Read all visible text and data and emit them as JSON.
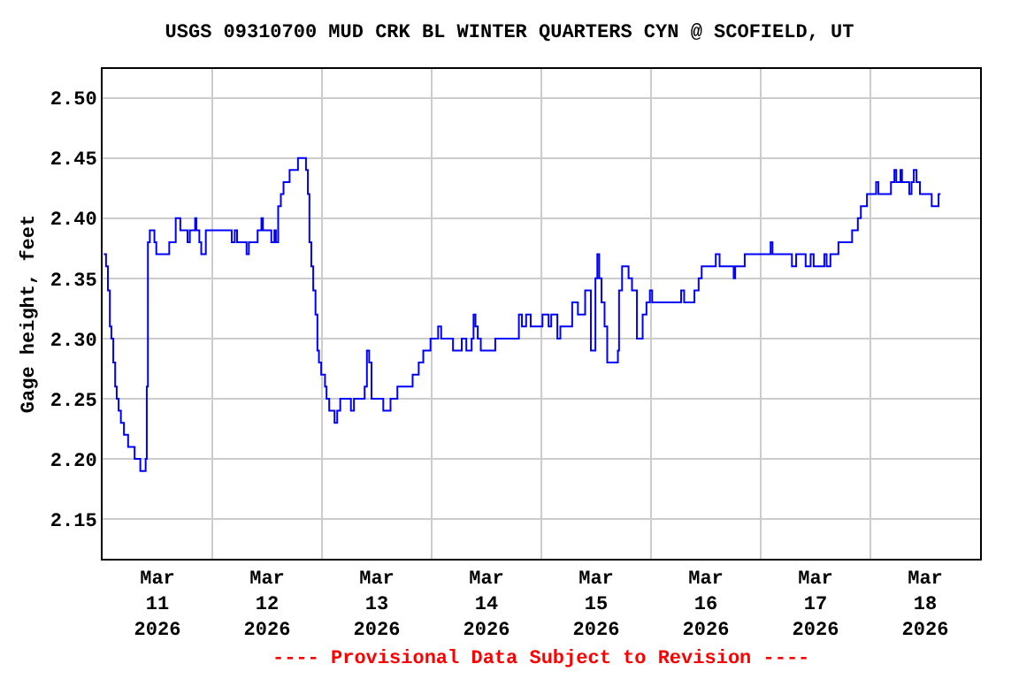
{
  "chart_data": {
    "type": "step",
    "title": "USGS 09310700 MUD CRK BL WINTER QUARTERS CYN @ SCOFIELD, UT",
    "ylabel": "Gage height, feet",
    "annotations": [
      "---- Provisional Data Subject to Revision ----"
    ],
    "x": [
      "2026-03-11T00:15",
      "2026-03-11T00:45",
      "2026-03-11T01:10",
      "2026-03-11T01:35",
      "2026-03-11T01:55",
      "2026-03-11T02:20",
      "2026-03-11T02:45",
      "2026-03-11T03:05",
      "2026-03-11T03:30",
      "2026-03-11T04:00",
      "2026-03-11T04:40",
      "2026-03-11T05:35",
      "2026-03-11T07:00",
      "2026-03-11T08:15",
      "2026-03-11T09:25",
      "2026-03-11T09:40",
      "2026-03-11T09:55",
      "2026-03-11T10:20",
      "2026-03-11T11:20",
      "2026-03-11T11:45",
      "2026-03-11T14:35",
      "2026-03-11T16:00",
      "2026-03-11T17:00",
      "2026-03-11T18:35",
      "2026-03-11T19:05",
      "2026-03-11T20:15",
      "2026-03-11T20:30",
      "2026-03-11T21:10",
      "2026-03-11T21:35",
      "2026-03-11T22:35",
      "2026-03-12T04:15",
      "2026-03-12T04:55",
      "2026-03-12T05:25",
      "2026-03-12T07:30",
      "2026-03-12T08:00",
      "2026-03-12T09:55",
      "2026-03-12T10:45",
      "2026-03-12T11:05",
      "2026-03-12T12:55",
      "2026-03-12T13:35",
      "2026-03-12T13:55",
      "2026-03-12T14:25",
      "2026-03-12T15:00",
      "2026-03-12T15:35",
      "2026-03-12T16:55",
      "2026-03-12T18:45",
      "2026-03-12T20:30",
      "2026-03-12T20:55",
      "2026-03-12T21:15",
      "2026-03-12T21:40",
      "2026-03-12T22:05",
      "2026-03-12T22:35",
      "2026-03-12T23:00",
      "2026-03-12T23:20",
      "2026-03-12T23:50",
      "2026-03-13T00:40",
      "2026-03-13T01:00",
      "2026-03-13T01:35",
      "2026-03-13T02:45",
      "2026-03-13T03:20",
      "2026-03-13T04:00",
      "2026-03-13T06:20",
      "2026-03-13T07:00",
      "2026-03-13T09:20",
      "2026-03-13T09:50",
      "2026-03-13T10:20",
      "2026-03-13T10:50",
      "2026-03-13T13:25",
      "2026-03-13T15:00",
      "2026-03-13T16:30",
      "2026-03-13T19:50",
      "2026-03-13T21:10",
      "2026-03-13T22:10",
      "2026-03-13T23:45",
      "2026-03-14T01:25",
      "2026-03-14T02:05",
      "2026-03-14T04:40",
      "2026-03-14T06:35",
      "2026-03-14T07:35",
      "2026-03-14T08:45",
      "2026-03-14T09:10",
      "2026-03-14T09:35",
      "2026-03-14T10:05",
      "2026-03-14T10:45",
      "2026-03-14T13:55",
      "2026-03-14T19:05",
      "2026-03-14T19:45",
      "2026-03-14T20:40",
      "2026-03-14T21:40",
      "2026-03-15T00:15",
      "2026-03-15T01:35",
      "2026-03-15T02:10",
      "2026-03-15T03:30",
      "2026-03-15T04:10",
      "2026-03-15T06:45",
      "2026-03-15T08:00",
      "2026-03-15T09:35",
      "2026-03-15T10:50",
      "2026-03-15T11:50",
      "2026-03-15T12:15",
      "2026-03-15T12:40",
      "2026-03-15T13:10",
      "2026-03-15T13:50",
      "2026-03-15T14:25",
      "2026-03-15T16:45",
      "2026-03-15T17:00",
      "2026-03-15T17:40",
      "2026-03-15T19:05",
      "2026-03-15T19:50",
      "2026-03-15T20:55",
      "2026-03-15T22:10",
      "2026-03-15T23:00",
      "2026-03-15T23:45",
      "2026-03-16T00:15",
      "2026-03-16T06:35",
      "2026-03-16T07:15",
      "2026-03-16T09:30",
      "2026-03-16T10:25",
      "2026-03-16T11:05",
      "2026-03-16T14:10",
      "2026-03-16T15:00",
      "2026-03-16T18:05",
      "2026-03-16T18:25",
      "2026-03-16T20:30",
      "2026-03-17T02:10",
      "2026-03-17T02:35",
      "2026-03-17T06:50",
      "2026-03-17T07:45",
      "2026-03-17T09:50",
      "2026-03-17T10:55",
      "2026-03-17T11:35",
      "2026-03-17T13:55",
      "2026-03-17T14:25",
      "2026-03-17T15:15",
      "2026-03-17T17:00",
      "2026-03-17T20:00",
      "2026-03-17T21:15",
      "2026-03-17T21:55",
      "2026-03-17T23:15",
      "2026-03-18T01:15",
      "2026-03-18T01:45",
      "2026-03-18T04:30",
      "2026-03-18T05:15",
      "2026-03-18T05:40",
      "2026-03-18T06:35",
      "2026-03-18T06:55",
      "2026-03-18T08:30",
      "2026-03-18T09:00",
      "2026-03-18T09:30",
      "2026-03-18T10:05",
      "2026-03-18T10:50",
      "2026-03-18T13:25",
      "2026-03-18T14:55",
      "2026-03-18T15:20"
    ],
    "series": [
      {
        "color": "#0000ff",
        "values": [
          2.37,
          2.36,
          2.34,
          2.31,
          2.3,
          2.28,
          2.26,
          2.25,
          2.24,
          2.23,
          2.22,
          2.21,
          2.2,
          2.19,
          2.2,
          2.26,
          2.38,
          2.39,
          2.38,
          2.37,
          2.38,
          2.4,
          2.39,
          2.38,
          2.39,
          2.4,
          2.39,
          2.38,
          2.37,
          2.39,
          2.38,
          2.39,
          2.38,
          2.37,
          2.38,
          2.39,
          2.4,
          2.39,
          2.38,
          2.39,
          2.38,
          2.41,
          2.42,
          2.43,
          2.44,
          2.45,
          2.44,
          2.42,
          2.38,
          2.36,
          2.34,
          2.32,
          2.29,
          2.28,
          2.27,
          2.26,
          2.25,
          2.24,
          2.23,
          2.24,
          2.25,
          2.24,
          2.25,
          2.26,
          2.29,
          2.28,
          2.25,
          2.24,
          2.25,
          2.26,
          2.27,
          2.28,
          2.29,
          2.3,
          2.31,
          2.3,
          2.29,
          2.3,
          2.29,
          2.3,
          2.32,
          2.31,
          2.3,
          2.29,
          2.3,
          2.32,
          2.31,
          2.32,
          2.31,
          2.32,
          2.31,
          2.32,
          2.3,
          2.31,
          2.33,
          2.32,
          2.34,
          2.29,
          2.35,
          2.37,
          2.35,
          2.33,
          2.31,
          2.28,
          2.29,
          2.34,
          2.36,
          2.35,
          2.34,
          2.3,
          2.32,
          2.33,
          2.34,
          2.33,
          2.34,
          2.33,
          2.34,
          2.35,
          2.36,
          2.37,
          2.36,
          2.35,
          2.36,
          2.37,
          2.38,
          2.37,
          2.36,
          2.37,
          2.36,
          2.37,
          2.36,
          2.37,
          2.36,
          2.37,
          2.38,
          2.39,
          2.4,
          2.41,
          2.42,
          2.43,
          2.42,
          2.43,
          2.44,
          2.43,
          2.44,
          2.43,
          2.42,
          2.43,
          2.44,
          2.43,
          2.42,
          2.41,
          2.42,
          2.42
        ]
      }
    ],
    "xlim": [
      "2026-03-11",
      "2026-03-19"
    ],
    "xticks": [
      {
        "value": "2026-03-11T00:00",
        "label": null
      },
      {
        "value": "2026-03-11T12:00",
        "label": "Mar\n11\n2026"
      },
      {
        "value": "2026-03-12T00:00",
        "label": null
      },
      {
        "value": "2026-03-12T12:00",
        "label": "Mar\n12\n2026"
      },
      {
        "value": "2026-03-13T00:00",
        "label": null
      },
      {
        "value": "2026-03-13T12:00",
        "label": "Mar\n13\n2026"
      },
      {
        "value": "2026-03-14T00:00",
        "label": null
      },
      {
        "value": "2026-03-14T12:00",
        "label": "Mar\n14\n2026"
      },
      {
        "value": "2026-03-15T00:00",
        "label": null
      },
      {
        "value": "2026-03-15T12:00",
        "label": "Mar\n15\n2026"
      },
      {
        "value": "2026-03-16T00:00",
        "label": null
      },
      {
        "value": "2026-03-16T12:00",
        "label": "Mar\n16\n2026"
      },
      {
        "value": "2026-03-17T00:00",
        "label": null
      },
      {
        "value": "2026-03-17T12:00",
        "label": "Mar\n17\n2026"
      },
      {
        "value": "2026-03-18T00:00",
        "label": null
      },
      {
        "value": "2026-03-18T12:00",
        "label": "Mar\n18\n2026"
      },
      {
        "value": "2026-03-19T00:00",
        "label": null
      }
    ],
    "ylim": [
      2.117,
      2.524
    ],
    "yticks": [
      {
        "value": 2.15,
        "label": "2.15"
      },
      {
        "value": 2.2,
        "label": "2.20"
      },
      {
        "value": 2.25,
        "label": "2.25"
      },
      {
        "value": 2.3,
        "label": "2.30"
      },
      {
        "value": 2.35,
        "label": "2.35"
      },
      {
        "value": 2.4,
        "label": "2.40"
      },
      {
        "value": 2.45,
        "label": "2.45"
      },
      {
        "value": 2.5,
        "label": "2.50"
      }
    ],
    "grid": true,
    "line_style": "solid"
  }
}
